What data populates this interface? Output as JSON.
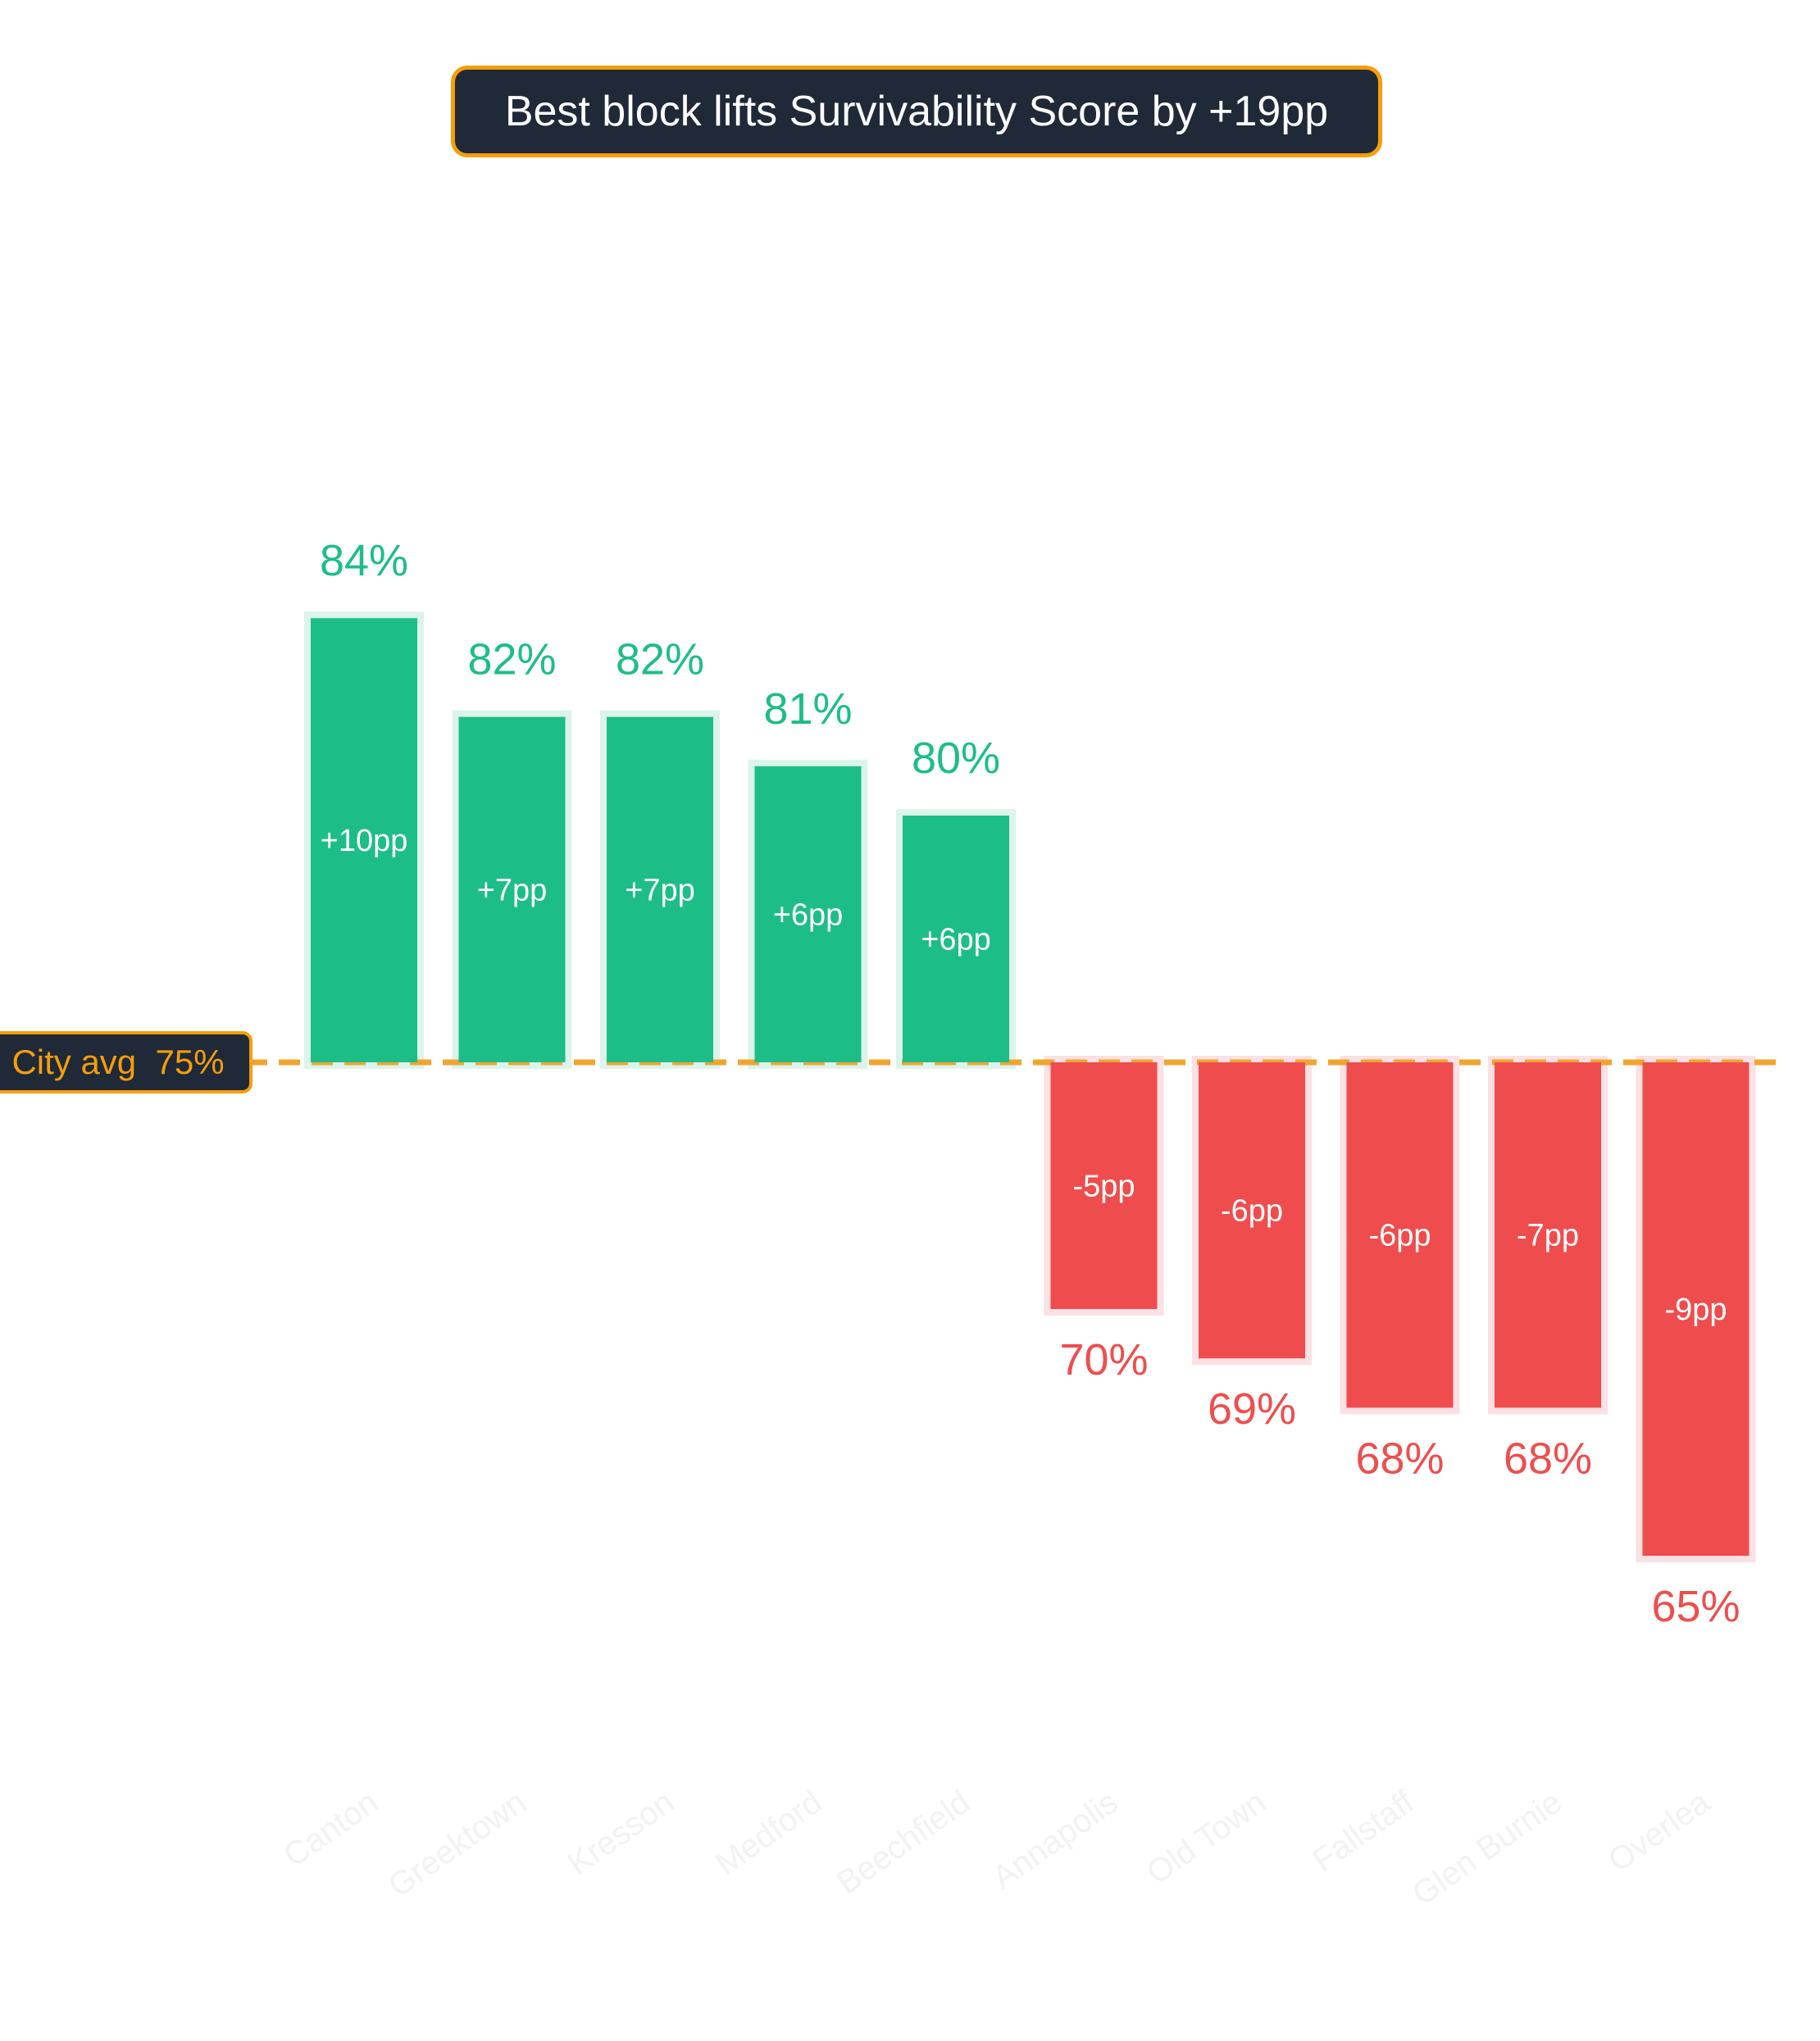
{
  "chart_data": {
    "type": "bar",
    "title": "Best block lifts Survivability Score by +19pp",
    "reference_line": {
      "label": "City avg",
      "value_label": "75%",
      "value": 75
    },
    "categories": [
      "Canton",
      "Greektown",
      "Kresson",
      "Medford",
      "Beechfield",
      "Annapolis",
      "Old Town",
      "Fallstaff",
      "Glen Burnie",
      "Overlea"
    ],
    "values": [
      84,
      82,
      82,
      81,
      80,
      70,
      69,
      68,
      68,
      65
    ],
    "value_labels": [
      "84%",
      "82%",
      "82%",
      "81%",
      "80%",
      "70%",
      "69%",
      "68%",
      "68%",
      "65%"
    ],
    "delta_labels": [
      "+10pp",
      "+7pp",
      "+7pp",
      "+6pp",
      "+6pp",
      "-5pp",
      "-6pp",
      "-6pp",
      "-7pp",
      "-9pp"
    ],
    "ylim": [
      55,
      94
    ],
    "grid": false,
    "legend": "none",
    "colors": {
      "positive": "#1dbd88",
      "positive_halo": "#dcf4ea",
      "negative": "#ef4d4d",
      "negative_halo": "#fbe1e3",
      "reference": "#f0a530",
      "title_bg": "#1f2937",
      "accent": "#f59e0b",
      "tick_label": "#f2f2f2"
    }
  }
}
